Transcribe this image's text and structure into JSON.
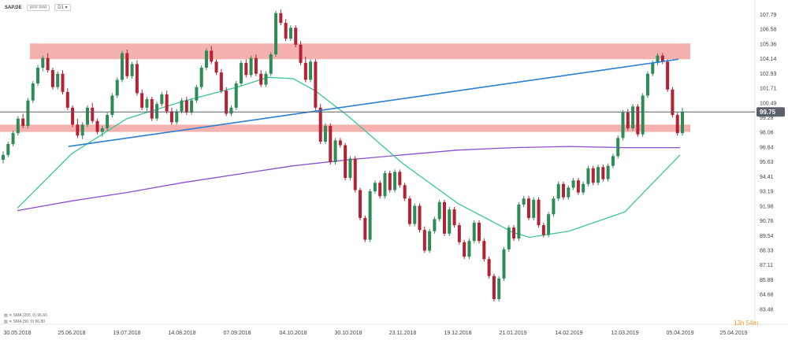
{
  "header": {
    "symbol": "SAP.DE",
    "tag": "### ###",
    "interval": "D1"
  },
  "legend": {
    "sma200": "SMA (200, 0) 96.60",
    "sma50": "SMA (50, 0) 96.80"
  },
  "countdown": "13h 54m",
  "colors": {
    "up": "#2e8b57",
    "down": "#b22234",
    "zone": "#f3a3a0",
    "trendline": "#2a7fd4",
    "sma50": "#3cc59a",
    "sma200": "#8a4fd1",
    "price_line": "#5a6068"
  },
  "chart_data": {
    "type": "candlestick",
    "title": "",
    "xlabel": "",
    "ylabel": "",
    "ylim": [
      83.0,
      108.6
    ],
    "y_ticks": [
      107.79,
      106.58,
      105.36,
      104.14,
      102.93,
      101.71,
      100.49,
      99.28,
      98.06,
      96.84,
      95.63,
      94.41,
      93.19,
      91.98,
      90.76,
      89.54,
      88.33,
      87.11,
      85.89,
      84.68,
      83.46
    ],
    "x_ticks": [
      "30.05.2018",
      "25.06.2018",
      "19.07.2018",
      "14.08.2018",
      "07.09.2018",
      "04.10.2018",
      "30.10.2018",
      "23.11.2018",
      "19.12.2018",
      "21.01.2019",
      "14.02.2019",
      "12.03.2019",
      "05.04.2019",
      "25.04.2019"
    ],
    "current_price": 99.75,
    "resistance_zone": [
      104.1,
      105.4
    ],
    "support_zone": [
      98.1,
      98.7
    ],
    "trendline": {
      "start": [
        "25.06.2018",
        96.9
      ],
      "end": [
        "05.04.2019",
        104.1
      ]
    },
    "sma50": {
      "name": "SMA (50, 0)",
      "points": [
        [
          "30.05.2018",
          91.8
        ],
        [
          "25.06.2018",
          96.3
        ],
        [
          "19.07.2018",
          99.2
        ],
        [
          "14.08.2018",
          100.6
        ],
        [
          "07.09.2018",
          101.8
        ],
        [
          "22.09.2018",
          102.6
        ],
        [
          "04.10.2018",
          102.5
        ],
        [
          "15.10.2018",
          101.5
        ],
        [
          "30.10.2018",
          99.4
        ],
        [
          "23.11.2018",
          95.5
        ],
        [
          "19.12.2018",
          92.2
        ],
        [
          "21.01.2019",
          89.8
        ],
        [
          "01.02.2019",
          89.4
        ],
        [
          "14.02.2019",
          89.9
        ],
        [
          "12.03.2019",
          91.5
        ],
        [
          "05.04.2019",
          96.2
        ]
      ]
    },
    "sma200": {
      "name": "SMA (200, 0)",
      "points": [
        [
          "30.05.2018",
          91.6
        ],
        [
          "25.06.2018",
          92.4
        ],
        [
          "19.07.2018",
          93.1
        ],
        [
          "14.08.2018",
          93.9
        ],
        [
          "07.09.2018",
          94.6
        ],
        [
          "04.10.2018",
          95.3
        ],
        [
          "30.10.2018",
          95.8
        ],
        [
          "23.11.2018",
          96.2
        ],
        [
          "19.12.2018",
          96.6
        ],
        [
          "21.01.2019",
          96.8
        ],
        [
          "14.02.2019",
          96.9
        ],
        [
          "12.03.2019",
          96.8
        ],
        [
          "05.04.2019",
          96.8
        ]
      ]
    },
    "candles": [
      [
        95.8,
        96.5,
        95.5,
        96.2
      ],
      [
        96.2,
        97.3,
        96.0,
        97.1
      ],
      [
        97.1,
        98.2,
        96.9,
        98.0
      ],
      [
        98.0,
        99.4,
        97.8,
        99.2
      ],
      [
        99.2,
        99.6,
        98.4,
        98.6
      ],
      [
        98.6,
        100.9,
        98.4,
        100.7
      ],
      [
        100.7,
        102.3,
        100.5,
        102.1
      ],
      [
        102.1,
        103.6,
        101.9,
        103.4
      ],
      [
        103.4,
        104.4,
        103.1,
        104.2
      ],
      [
        104.2,
        104.6,
        103.0,
        103.2
      ],
      [
        103.2,
        103.4,
        101.6,
        101.8
      ],
      [
        101.8,
        103.1,
        101.6,
        102.9
      ],
      [
        102.9,
        103.2,
        101.2,
        101.4
      ],
      [
        101.4,
        101.7,
        99.9,
        100.1
      ],
      [
        100.1,
        100.3,
        98.5,
        98.7
      ],
      [
        98.7,
        99.2,
        97.6,
        97.8
      ],
      [
        97.8,
        98.9,
        97.5,
        98.7
      ],
      [
        98.7,
        100.3,
        98.5,
        100.1
      ],
      [
        100.1,
        100.5,
        98.8,
        99.0
      ],
      [
        99.0,
        99.2,
        97.9,
        98.1
      ],
      [
        98.1,
        98.6,
        97.7,
        98.4
      ],
      [
        98.4,
        99.7,
        98.2,
        99.5
      ],
      [
        99.5,
        101.3,
        99.3,
        101.1
      ],
      [
        101.1,
        102.6,
        100.9,
        102.4
      ],
      [
        102.4,
        104.8,
        102.2,
        104.6
      ],
      [
        104.6,
        104.9,
        102.5,
        102.7
      ],
      [
        102.7,
        103.9,
        102.5,
        103.7
      ],
      [
        103.7,
        104.0,
        101.1,
        101.3
      ],
      [
        101.3,
        101.6,
        99.9,
        100.1
      ],
      [
        100.1,
        101.0,
        99.8,
        100.8
      ],
      [
        100.8,
        101.0,
        99.0,
        99.2
      ],
      [
        99.2,
        100.6,
        99.0,
        100.4
      ],
      [
        100.4,
        101.4,
        100.2,
        101.2
      ],
      [
        101.2,
        101.5,
        99.6,
        99.8
      ],
      [
        99.8,
        100.1,
        98.7,
        98.9
      ],
      [
        98.9,
        100.0,
        98.7,
        99.8
      ],
      [
        99.8,
        100.9,
        99.6,
        100.7
      ],
      [
        100.7,
        101.0,
        99.5,
        99.7
      ],
      [
        99.7,
        100.9,
        99.5,
        100.7
      ],
      [
        100.7,
        102.0,
        100.5,
        101.8
      ],
      [
        101.8,
        103.6,
        101.6,
        103.4
      ],
      [
        103.4,
        105.0,
        103.2,
        104.8
      ],
      [
        104.8,
        105.2,
        103.7,
        103.9
      ],
      [
        103.9,
        104.1,
        102.8,
        103.0
      ],
      [
        103.0,
        103.3,
        101.3,
        101.5
      ],
      [
        101.5,
        101.8,
        99.4,
        99.6
      ],
      [
        99.6,
        100.3,
        99.4,
        100.1
      ],
      [
        100.1,
        102.3,
        99.9,
        102.1
      ],
      [
        102.1,
        104.0,
        101.9,
        103.8
      ],
      [
        103.8,
        104.1,
        102.6,
        102.8
      ],
      [
        102.8,
        104.4,
        102.6,
        104.2
      ],
      [
        104.2,
        104.5,
        102.7,
        102.9
      ],
      [
        102.9,
        103.2,
        101.8,
        102.0
      ],
      [
        102.0,
        103.1,
        101.8,
        102.9
      ],
      [
        102.9,
        104.7,
        102.7,
        104.5
      ],
      [
        104.5,
        108.1,
        104.3,
        107.9
      ],
      [
        107.9,
        108.2,
        106.9,
        107.1
      ],
      [
        107.1,
        107.4,
        105.6,
        105.8
      ],
      [
        105.8,
        106.9,
        105.6,
        106.7
      ],
      [
        106.7,
        106.9,
        105.1,
        105.3
      ],
      [
        105.3,
        105.6,
        103.6,
        103.8
      ],
      [
        103.8,
        104.3,
        102.2,
        102.4
      ],
      [
        102.4,
        104.1,
        102.2,
        103.9
      ],
      [
        103.9,
        104.1,
        99.9,
        100.1
      ],
      [
        100.1,
        100.4,
        97.1,
        97.3
      ],
      [
        97.3,
        98.8,
        97.1,
        98.6
      ],
      [
        98.6,
        98.8,
        95.4,
        95.6
      ],
      [
        95.6,
        97.6,
        95.4,
        97.4
      ],
      [
        97.4,
        97.6,
        96.8,
        97.0
      ],
      [
        97.0,
        97.2,
        94.1,
        94.3
      ],
      [
        94.3,
        96.1,
        94.1,
        95.9
      ],
      [
        95.9,
        96.1,
        93.1,
        93.3
      ],
      [
        93.3,
        93.5,
        90.8,
        91.0
      ],
      [
        91.0,
        91.2,
        89.0,
        89.2
      ],
      [
        89.2,
        93.4,
        89.0,
        93.2
      ],
      [
        93.2,
        94.1,
        93.0,
        93.9
      ],
      [
        93.9,
        94.1,
        92.6,
        92.8
      ],
      [
        92.8,
        94.9,
        92.6,
        94.7
      ],
      [
        94.7,
        94.9,
        93.1,
        93.3
      ],
      [
        93.3,
        95.0,
        93.1,
        94.8
      ],
      [
        94.8,
        95.0,
        93.5,
        93.7
      ],
      [
        93.7,
        93.9,
        92.4,
        92.6
      ],
      [
        92.6,
        92.8,
        90.3,
        90.5
      ],
      [
        90.5,
        92.2,
        90.3,
        92.0
      ],
      [
        92.0,
        92.2,
        89.8,
        90.0
      ],
      [
        90.0,
        90.3,
        88.1,
        88.3
      ],
      [
        88.3,
        90.1,
        88.1,
        89.9
      ],
      [
        89.9,
        91.1,
        89.7,
        90.9
      ],
      [
        90.9,
        92.5,
        90.7,
        92.3
      ],
      [
        92.3,
        92.5,
        89.5,
        89.7
      ],
      [
        89.7,
        91.9,
        89.5,
        91.7
      ],
      [
        91.7,
        91.9,
        90.2,
        90.4
      ],
      [
        90.4,
        90.6,
        88.8,
        89.0
      ],
      [
        89.0,
        89.2,
        87.6,
        87.8
      ],
      [
        87.8,
        89.3,
        87.6,
        89.1
      ],
      [
        89.1,
        90.8,
        88.9,
        90.6
      ],
      [
        90.6,
        90.8,
        88.9,
        89.1
      ],
      [
        89.1,
        89.3,
        87.4,
        87.6
      ],
      [
        87.6,
        87.8,
        86.0,
        86.2
      ],
      [
        86.2,
        86.4,
        84.1,
        84.3
      ],
      [
        84.3,
        86.2,
        84.1,
        86.0
      ],
      [
        86.0,
        88.6,
        85.8,
        88.4
      ],
      [
        88.4,
        90.4,
        88.2,
        90.2
      ],
      [
        90.2,
        90.4,
        89.1,
        89.3
      ],
      [
        89.3,
        92.3,
        89.1,
        92.1
      ],
      [
        92.1,
        92.8,
        91.9,
        92.6
      ],
      [
        92.6,
        92.8,
        90.8,
        91.0
      ],
      [
        91.0,
        92.7,
        90.8,
        92.5
      ],
      [
        92.5,
        92.7,
        90.2,
        90.4
      ],
      [
        90.4,
        90.6,
        89.4,
        89.6
      ],
      [
        89.6,
        91.5,
        89.4,
        91.3
      ],
      [
        91.3,
        92.8,
        91.1,
        92.6
      ],
      [
        92.6,
        94.0,
        92.4,
        93.8
      ],
      [
        93.8,
        94.0,
        92.5,
        92.7
      ],
      [
        92.7,
        93.7,
        92.5,
        93.5
      ],
      [
        93.5,
        94.3,
        93.3,
        94.1
      ],
      [
        94.1,
        94.3,
        92.9,
        93.1
      ],
      [
        93.1,
        94.0,
        92.9,
        93.8
      ],
      [
        93.8,
        95.3,
        93.6,
        95.1
      ],
      [
        95.1,
        95.3,
        93.7,
        93.9
      ],
      [
        93.9,
        95.4,
        93.7,
        95.2
      ],
      [
        95.2,
        95.4,
        94.0,
        94.2
      ],
      [
        94.2,
        95.5,
        94.0,
        95.3
      ],
      [
        95.3,
        96.3,
        95.1,
        96.1
      ],
      [
        96.1,
        97.8,
        95.9,
        97.6
      ],
      [
        97.6,
        99.9,
        97.4,
        99.7
      ],
      [
        99.7,
        100.0,
        98.2,
        98.4
      ],
      [
        98.4,
        100.4,
        98.2,
        100.2
      ],
      [
        100.2,
        100.4,
        97.7,
        97.9
      ],
      [
        97.9,
        101.3,
        97.7,
        101.1
      ],
      [
        101.1,
        103.1,
        100.9,
        102.9
      ],
      [
        102.9,
        104.0,
        102.7,
        103.8
      ],
      [
        103.8,
        104.6,
        103.6,
        104.4
      ],
      [
        104.4,
        104.6,
        103.7,
        103.9
      ],
      [
        103.9,
        104.1,
        101.4,
        101.6
      ],
      [
        101.6,
        101.8,
        99.3,
        99.5
      ],
      [
        99.5,
        99.7,
        97.8,
        98.0
      ],
      [
        98.0,
        100.1,
        97.8,
        99.75
      ]
    ]
  }
}
